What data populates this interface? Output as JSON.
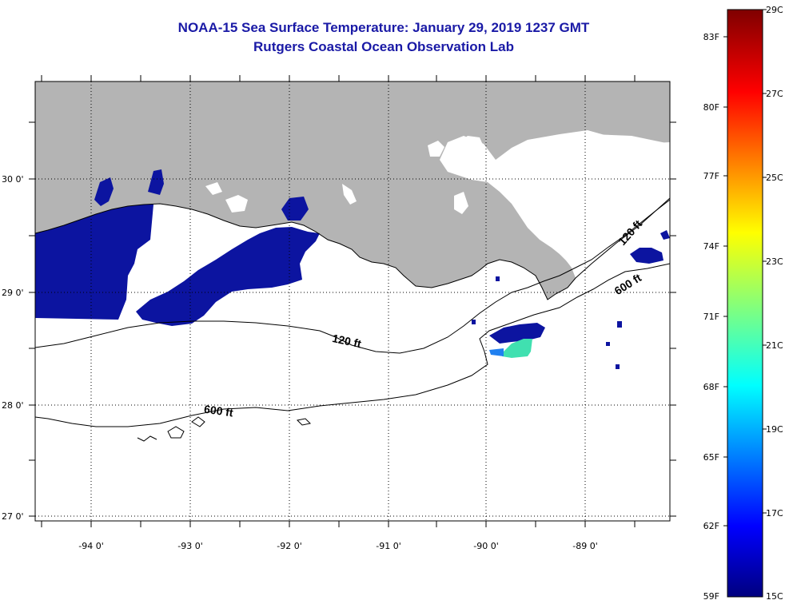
{
  "header": {
    "title": "NOAA-15 Sea Surface Temperature:  January 29, 2019 1237 GMT",
    "subtitle": "Rutgers Coastal Ocean Observation Lab"
  },
  "axes": {
    "longitude_labels": [
      "-94 0'",
      "-93 0'",
      "-92 0'",
      "-91 0'",
      "-90 0'",
      "-89 0'"
    ],
    "latitude_labels": [
      "30 0'",
      "29 0'",
      "28 0'",
      "27 0'"
    ],
    "grid": "dotted"
  },
  "contours": {
    "labels": [
      "120 ft",
      "600 ft",
      "120 ft",
      "600 ft"
    ]
  },
  "colorbar": {
    "fahrenheit_labels": [
      "83F",
      "80F",
      "77F",
      "74F",
      "71F",
      "68F",
      "65F",
      "62F",
      "59F"
    ],
    "celsius_labels": [
      "29C",
      "27C",
      "25C",
      "23C",
      "21C",
      "19C",
      "17C",
      "15C"
    ],
    "range_c": [
      15,
      29
    ],
    "low_color": "#00007f",
    "high_color": "#7f0000"
  },
  "colors": {
    "land": "#b4b4b4",
    "cold_water": "#0c14a0",
    "warm_patch": "#40e0b0",
    "title": "#1a1aa6"
  }
}
